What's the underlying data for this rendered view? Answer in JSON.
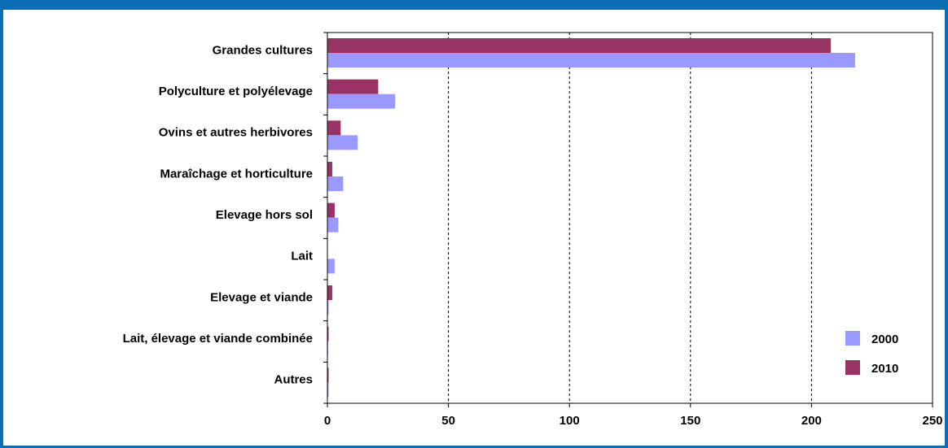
{
  "chart_data": {
    "type": "bar",
    "orientation": "horizontal",
    "categories": [
      "Grandes cultures",
      "Polyculture et polyélevage",
      "Ovins et autres herbivores",
      "Maraîchage et horticulture",
      "Elevage hors sol",
      "Lait",
      "Elevage et viande",
      "Lait, élevage et viande combinée",
      "Autres"
    ],
    "series": [
      {
        "name": "2010",
        "color": "#993366",
        "values": [
          208,
          21,
          5.5,
          2,
          3,
          0,
          2,
          0.5,
          0.5
        ]
      },
      {
        "name": "2000",
        "color": "#9999ff",
        "values": [
          218,
          28,
          12.5,
          6.5,
          4.5,
          3,
          0.5,
          0.3,
          0.5
        ]
      }
    ],
    "xlim": [
      0,
      250
    ],
    "xticks": [
      "0",
      "50",
      "100",
      "150",
      "200",
      "250"
    ],
    "grid": "vertical dashed",
    "legend_position": "bottom-right",
    "legend": [
      "2000",
      "2010"
    ],
    "title": "",
    "xlabel": "",
    "ylabel": ""
  }
}
